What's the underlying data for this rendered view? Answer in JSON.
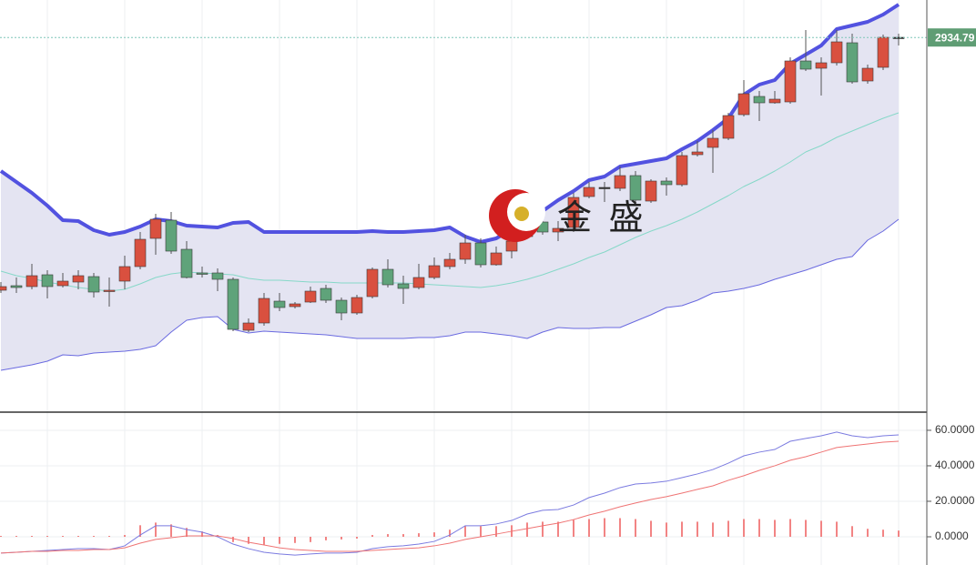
{
  "watermark": "金 盛",
  "chart_data": [
    {
      "type": "candlestick",
      "ylim": [
        2524,
        2976
      ],
      "yticks": [
        {
          "value": 2934.79,
          "label": "2934.79"
        }
      ],
      "up_color": "#d9503f",
      "down_color": "#5fa37a",
      "flat_color": "#333333",
      "open": [
        2657,
        2662,
        2661,
        2674,
        2662,
        2666,
        2672,
        2656,
        2667,
        2683,
        2714,
        2734,
        2702,
        2676,
        2676,
        2669,
        2613,
        2621,
        2645,
        2639,
        2644,
        2659,
        2646,
        2632,
        2650,
        2680,
        2664,
        2660,
        2671,
        2683,
        2691,
        2709,
        2685,
        2700,
        2716,
        2732,
        2721,
        2726,
        2760,
        2770,
        2769,
        2783,
        2755,
        2777,
        2773,
        2806,
        2814,
        2824,
        2850,
        2870,
        2863,
        2864,
        2909,
        2901,
        2907,
        2929,
        2887,
        2902,
        2935
      ],
      "high": [
        2666,
        2671,
        2686,
        2679,
        2676,
        2679,
        2676,
        2671,
        2695,
        2721,
        2741,
        2743,
        2711,
        2683,
        2681,
        2671,
        2626,
        2654,
        2654,
        2644,
        2661,
        2663,
        2649,
        2652,
        2682,
        2691,
        2673,
        2686,
        2693,
        2698,
        2718,
        2714,
        2705,
        2719,
        2736,
        2738,
        2733,
        2764,
        2776,
        2776,
        2793,
        2788,
        2779,
        2781,
        2809,
        2821,
        2833,
        2852,
        2888,
        2876,
        2876,
        2913,
        2943,
        2913,
        2943,
        2939,
        2905,
        2938,
        2939
      ],
      "low": [
        2654,
        2654,
        2658,
        2648,
        2660,
        2658,
        2649,
        2639,
        2658,
        2680,
        2696,
        2697,
        2670,
        2671,
        2656,
        2612,
        2611,
        2618,
        2634,
        2637,
        2643,
        2643,
        2624,
        2630,
        2648,
        2660,
        2642,
        2658,
        2669,
        2680,
        2686,
        2682,
        2684,
        2692,
        2714,
        2718,
        2711,
        2721,
        2758,
        2754,
        2766,
        2753,
        2753,
        2761,
        2771,
        2804,
        2786,
        2822,
        2848,
        2843,
        2862,
        2862,
        2898,
        2871,
        2904,
        2884,
        2884,
        2899,
        2926
      ],
      "close": [
        2661,
        2660,
        2673,
        2661,
        2667,
        2673,
        2655,
        2657,
        2683,
        2713,
        2735,
        2700,
        2671,
        2675,
        2669,
        2614,
        2621,
        2648,
        2638,
        2642,
        2656,
        2646,
        2632,
        2649,
        2680,
        2663,
        2659,
        2671,
        2684,
        2691,
        2709,
        2685,
        2698,
        2711,
        2731,
        2721,
        2725,
        2759,
        2770,
        2770,
        2783,
        2756,
        2777,
        2773,
        2805,
        2809,
        2824,
        2849,
        2873,
        2863,
        2867,
        2909,
        2900,
        2907,
        2930,
        2886,
        2901,
        2935,
        2934.79
      ],
      "band_color": "#e4e4f2",
      "series": [
        {
          "color": "#5252e0",
          "values": [
            2788,
            2776,
            2764,
            2750,
            2734,
            2733,
            2723,
            2718,
            2721,
            2727,
            2735,
            2733,
            2728,
            2727,
            2726,
            2731,
            2732,
            2721,
            2721,
            2721,
            2721,
            2721,
            2721,
            2721,
            2722,
            2721,
            2721,
            2722,
            2723,
            2726,
            2716,
            2710,
            2714,
            2724,
            2731,
            2744,
            2756,
            2766,
            2778,
            2782,
            2793,
            2796,
            2799,
            2802,
            2812,
            2821,
            2833,
            2846,
            2872,
            2883,
            2888,
            2906,
            2916,
            2926,
            2944,
            2948,
            2952,
            2960,
            2971
          ]
        },
        {
          "color": "#86d8c8",
          "values": [
            2678,
            2673,
            2670,
            2666,
            2663,
            2660,
            2658,
            2656,
            2658,
            2664,
            2671,
            2675,
            2677,
            2676,
            2675,
            2674,
            2670,
            2668,
            2668,
            2667,
            2666,
            2666,
            2665,
            2665,
            2665,
            2665,
            2665,
            2664,
            2663,
            2662,
            2661,
            2660,
            2662,
            2665,
            2669,
            2674,
            2680,
            2686,
            2693,
            2699,
            2707,
            2715,
            2722,
            2728,
            2735,
            2743,
            2752,
            2761,
            2771,
            2779,
            2788,
            2798,
            2809,
            2816,
            2825,
            2832,
            2839,
            2846,
            2852
          ]
        },
        {
          "color": "#6a6ae0",
          "values": [
            2569,
            2572,
            2575,
            2579,
            2586,
            2585,
            2588,
            2589,
            2590,
            2592,
            2596,
            2611,
            2624,
            2627,
            2628,
            2614,
            2610,
            2612,
            2611,
            2610,
            2609,
            2608,
            2606,
            2604,
            2604,
            2604,
            2604,
            2605,
            2605,
            2607,
            2611,
            2611,
            2609,
            2607,
            2604,
            2611,
            2616,
            2615,
            2615,
            2616,
            2616,
            2623,
            2630,
            2638,
            2640,
            2646,
            2654,
            2656,
            2659,
            2663,
            2669,
            2674,
            2679,
            2685,
            2691,
            2694,
            2712,
            2722,
            2735
          ]
        }
      ]
    },
    {
      "type": "macd",
      "ylim": [
        -15.9,
        69.2
      ],
      "yticks": [
        {
          "value": 60,
          "label": "60.0000"
        },
        {
          "value": 40,
          "label": "40.0000"
        },
        {
          "value": 20,
          "label": "20.0000"
        },
        {
          "value": 0,
          "label": "0.0000"
        }
      ],
      "bar_color": "#ee5a5a",
      "bars": [
        0.5,
        0.5,
        0.5,
        0.5,
        0.5,
        0.5,
        0.5,
        0.5,
        1,
        6.5,
        8,
        7,
        5,
        3,
        1,
        -3,
        -4,
        -4.5,
        -4,
        -3.5,
        -3,
        -2,
        -1.5,
        -1,
        1,
        1.5,
        1.5,
        2,
        2.5,
        4,
        6,
        6,
        6,
        6.5,
        8,
        8.5,
        8.5,
        9.5,
        10,
        10.5,
        10.5,
        10,
        9,
        8,
        8.5,
        8.5,
        8,
        9,
        10,
        10,
        9.5,
        10,
        9.5,
        9,
        8.5,
        6,
        4.5,
        4,
        3.5
      ],
      "series": [
        {
          "color": "#7b7be0",
          "values": [
            -9.2,
            -8.7,
            -8.2,
            -7.7,
            -7.2,
            -6.7,
            -6.7,
            -7.2,
            -5.1,
            1.0,
            6.2,
            6.2,
            4.1,
            2.6,
            0,
            -4.1,
            -6.7,
            -8.7,
            -9.7,
            -10.3,
            -9.7,
            -9.2,
            -9.2,
            -8.7,
            -6.7,
            -5.6,
            -5.1,
            -4.1,
            -2.6,
            1.0,
            6.2,
            6.2,
            7.2,
            9.2,
            12.8,
            14.9,
            15.4,
            17.9,
            22.1,
            24.6,
            27.7,
            29.7,
            30.3,
            31.3,
            33.3,
            35.4,
            37.9,
            41.5,
            45.6,
            47.7,
            49.2,
            53.8,
            55.4,
            56.9,
            59.0,
            56.9,
            55.9,
            56.9,
            57.4
          ]
        },
        {
          "color": "#ef7474",
          "values": [
            -9.2,
            -8.7,
            -8.2,
            -8.2,
            -7.7,
            -7.7,
            -7.2,
            -7.2,
            -6.2,
            -3.6,
            -1.5,
            -0.5,
            0.5,
            0.5,
            0.5,
            -1.0,
            -3.1,
            -4.6,
            -6.2,
            -7.2,
            -7.7,
            -8.2,
            -8.2,
            -8.2,
            -7.7,
            -7.2,
            -6.7,
            -6.2,
            -5.1,
            -3.6,
            -1.5,
            0,
            1.5,
            3.1,
            4.6,
            6.2,
            7.7,
            9.7,
            12.3,
            14.4,
            16.9,
            19.0,
            21.0,
            22.6,
            24.6,
            26.7,
            28.7,
            31.8,
            34.4,
            37.4,
            40.0,
            43.1,
            45.1,
            47.7,
            50.3,
            51.3,
            52.3,
            53.3,
            53.8
          ]
        }
      ]
    }
  ]
}
